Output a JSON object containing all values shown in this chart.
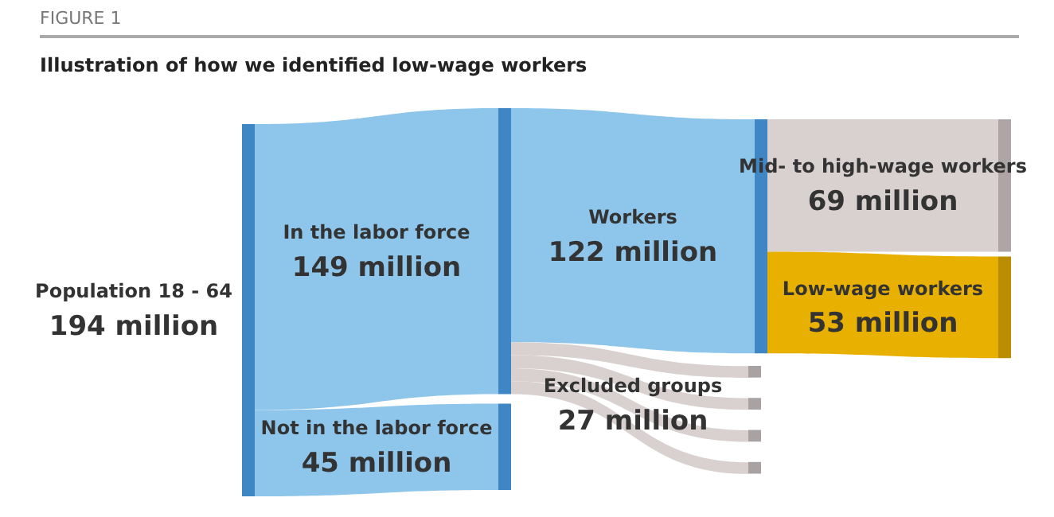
{
  "chart_data": {
    "type": "other",
    "subtitle": "FIGURE 1",
    "title": "Illustration of how we identified low-wage workers",
    "categories": [
      "Population 18 - 64",
      "In the labor force",
      "Not in the labor force",
      "Workers",
      "Excluded groups",
      "Mid- to high-wage workers",
      "Low-wage workers"
    ],
    "values": [
      194,
      149,
      45,
      122,
      27,
      69,
      53
    ],
    "value_labels": [
      "194 million",
      "149 million",
      "45 million",
      "122 million",
      "27 million",
      "69 million",
      "53 million"
    ],
    "colors": [
      "#8ec5ea",
      "#8ec5ea",
      "#8ec5ea",
      "#8ec5ea",
      "#d9d0d0",
      "#d9d0d0",
      "#e8b000"
    ]
  }
}
